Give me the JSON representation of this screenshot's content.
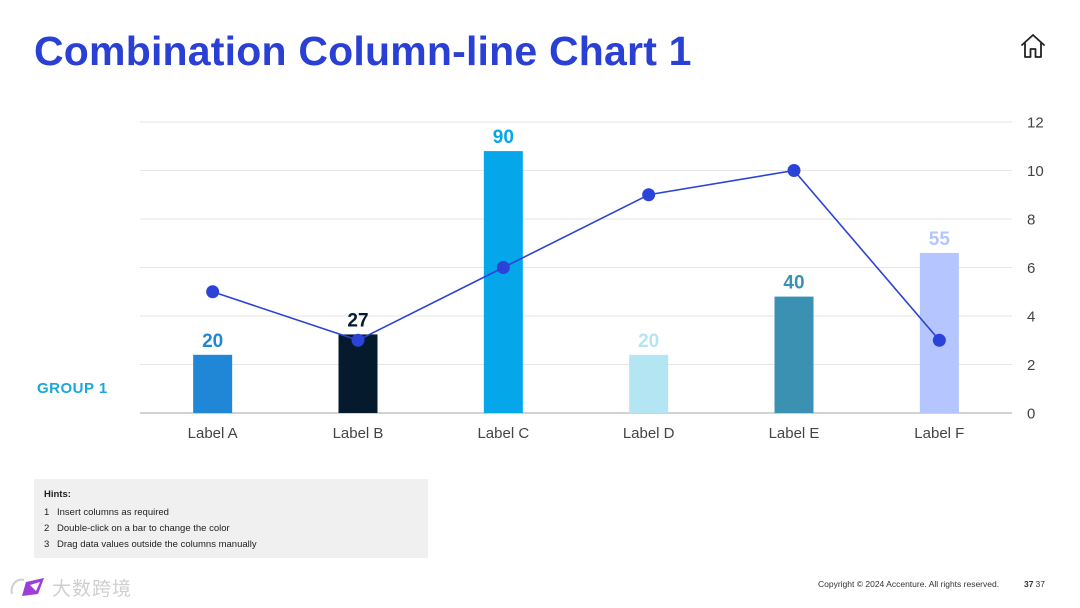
{
  "slide": {
    "title": "Combination Column-line Chart 1",
    "group_label": "GROUP 1",
    "copyright": "Copyright © 2024 Accenture. All rights reserved.",
    "page_number": "37",
    "page_number_secondary": "37",
    "watermark_text": "大数跨境",
    "icon": "home-icon"
  },
  "hints": {
    "title": "Hints:",
    "items": [
      {
        "num": "1",
        "text": "Insert columns as required"
      },
      {
        "num": "2",
        "text": "Double-click on a bar to change the color"
      },
      {
        "num": "3",
        "text": "Drag data values outside the columns manually"
      }
    ]
  },
  "chart_data": {
    "type": "bar",
    "categories": [
      "Label A",
      "Label B",
      "Label C",
      "Label D",
      "Label E",
      "Label F"
    ],
    "series": [
      {
        "type": "bar",
        "values": [
          20,
          27,
          90,
          20,
          40,
          55
        ],
        "colors": [
          "#1f87d6",
          "#061a2e",
          "#05a6ea",
          "#b3e6f2",
          "#3a91b2",
          "#b4c5ff"
        ],
        "label_colors": [
          "#1f87d6",
          "#061a2e",
          "#05a6ea",
          "#b3e6f2",
          "#3a91b2",
          "#b4c5ff"
        ]
      },
      {
        "type": "line",
        "values": [
          5,
          3,
          6,
          9,
          10,
          3
        ],
        "color": "#2b43d8",
        "axis": "right"
      }
    ],
    "bar_axis_range": [
      0,
      100
    ],
    "right_axis": {
      "ticks": [
        0,
        2,
        4,
        6,
        8,
        10,
        12
      ],
      "ylim": [
        0,
        12
      ],
      "position": "right"
    },
    "grid": true,
    "legend": "none"
  }
}
